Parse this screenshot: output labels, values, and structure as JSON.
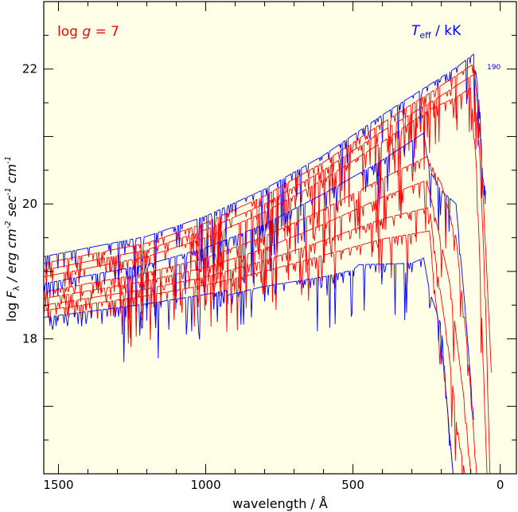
{
  "chart_data": {
    "type": "line",
    "xlabel": "wavelength / Å",
    "ylabel_parts": {
      "pre": "log ",
      "F": "F",
      "lambda": "λ",
      "units": " / erg cm",
      "exp1": "-2",
      "sec": " sec",
      "exp2": "-1",
      "cm": " cm",
      "exp3": "-1"
    },
    "x_range": [
      1550,
      -55
    ],
    "y_range": [
      16.0,
      23.0
    ],
    "x_ticks": [
      1500,
      1000,
      500,
      0
    ],
    "x_tick_labels": [
      "1500",
      "1000",
      "500",
      "0"
    ],
    "y_ticks": [
      18,
      20,
      22
    ],
    "y_tick_labels": [
      "18",
      "20",
      "22"
    ],
    "background": "#ffffe8",
    "colors": {
      "hot": "#0000ff",
      "model": "#ff0000"
    },
    "annotations": {
      "logg": {
        "prefix": "log ",
        "g": "g",
        "suffix": " = 7",
        "color": "#ff0000"
      },
      "teff": {
        "T": "T",
        "sub": "eff",
        "suffix": " / kK",
        "color": "#0000ff"
      },
      "label_190": "190"
    },
    "series": [
      {
        "color": "blue",
        "values": [
          [
            1550,
            19.22
          ],
          [
            1200,
            19.52
          ],
          [
            1000,
            19.82
          ],
          [
            800,
            20.22
          ],
          [
            600,
            20.72
          ],
          [
            400,
            21.32
          ],
          [
            200,
            21.88
          ],
          [
            150,
            22.02
          ],
          [
            90,
            22.22
          ],
          [
            70,
            21.5
          ],
          [
            60,
            20.4
          ],
          [
            50,
            20.2
          ]
        ]
      },
      {
        "color": "red",
        "values": [
          [
            1550,
            19.12
          ],
          [
            1200,
            19.42
          ],
          [
            1000,
            19.72
          ],
          [
            800,
            20.12
          ],
          [
            600,
            20.62
          ],
          [
            400,
            21.2
          ],
          [
            220,
            21.7
          ],
          [
            150,
            21.9
          ],
          [
            90,
            22.08
          ],
          [
            70,
            21.2
          ],
          [
            50,
            19.4
          ],
          [
            30,
            17.5
          ]
        ]
      },
      {
        "color": "red",
        "values": [
          [
            1550,
            19.02
          ],
          [
            1200,
            19.32
          ],
          [
            1000,
            19.62
          ],
          [
            800,
            20.0
          ],
          [
            600,
            20.5
          ],
          [
            400,
            21.08
          ],
          [
            220,
            21.55
          ],
          [
            150,
            21.75
          ],
          [
            90,
            21.92
          ],
          [
            70,
            20.8
          ],
          [
            50,
            18.6
          ],
          [
            35,
            16.0
          ]
        ]
      },
      {
        "color": "red",
        "values": [
          [
            1550,
            18.92
          ],
          [
            1200,
            19.22
          ],
          [
            1000,
            19.5
          ],
          [
            800,
            19.88
          ],
          [
            600,
            20.36
          ],
          [
            400,
            20.92
          ],
          [
            240,
            21.4
          ],
          [
            150,
            21.58
          ],
          [
            100,
            21.72
          ],
          [
            80,
            20.5
          ],
          [
            60,
            18.0
          ],
          [
            45,
            16.0
          ]
        ]
      },
      {
        "color": "blue",
        "values": [
          [
            1550,
            18.82
          ],
          [
            1200,
            19.1
          ],
          [
            1000,
            19.35
          ],
          [
            800,
            19.7
          ],
          [
            600,
            20.15
          ],
          [
            400,
            20.65
          ],
          [
            260,
            21.05
          ],
          [
            240,
            20.5
          ],
          [
            200,
            20.2
          ],
          [
            150,
            20.0
          ],
          [
            120,
            18.5
          ],
          [
            90,
            16.8
          ]
        ]
      },
      {
        "color": "red",
        "values": [
          [
            1550,
            18.7
          ],
          [
            1200,
            18.98
          ],
          [
            1000,
            19.2
          ],
          [
            800,
            19.52
          ],
          [
            600,
            19.92
          ],
          [
            400,
            20.38
          ],
          [
            250,
            20.7
          ],
          [
            200,
            20.3
          ],
          [
            150,
            19.5
          ],
          [
            110,
            17.8
          ],
          [
            80,
            16.0
          ]
        ]
      },
      {
        "color": "red",
        "values": [
          [
            1550,
            18.6
          ],
          [
            1200,
            18.86
          ],
          [
            1000,
            19.06
          ],
          [
            800,
            19.34
          ],
          [
            600,
            19.7
          ],
          [
            400,
            20.1
          ],
          [
            250,
            20.35
          ],
          [
            220,
            19.8
          ],
          [
            170,
            18.8
          ],
          [
            120,
            17.0
          ],
          [
            100,
            16.0
          ]
        ]
      },
      {
        "color": "red",
        "values": [
          [
            1550,
            18.5
          ],
          [
            1200,
            18.74
          ],
          [
            1000,
            18.92
          ],
          [
            800,
            19.16
          ],
          [
            600,
            19.46
          ],
          [
            400,
            19.78
          ],
          [
            240,
            19.95
          ],
          [
            220,
            19.2
          ],
          [
            180,
            18.0
          ],
          [
            140,
            16.5
          ],
          [
            120,
            16.0
          ]
        ]
      },
      {
        "color": "red",
        "values": [
          [
            1550,
            18.42
          ],
          [
            1200,
            18.64
          ],
          [
            1000,
            18.8
          ],
          [
            800,
            19.0
          ],
          [
            600,
            19.24
          ],
          [
            400,
            19.48
          ],
          [
            240,
            19.6
          ],
          [
            220,
            18.6
          ],
          [
            190,
            17.5
          ],
          [
            160,
            16.0
          ]
        ]
      },
      {
        "color": "blue",
        "values": [
          [
            1550,
            18.32
          ],
          [
            1200,
            18.52
          ],
          [
            1000,
            18.66
          ],
          [
            930,
            18.72
          ],
          [
            925,
            18.65
          ],
          [
            800,
            18.78
          ],
          [
            600,
            18.92
          ],
          [
            500,
            19.02
          ],
          [
            480,
            19.1
          ],
          [
            300,
            19.12
          ],
          [
            260,
            19.2
          ],
          [
            240,
            18.7
          ],
          [
            200,
            18.2
          ],
          [
            180,
            17.0
          ],
          [
            160,
            16.0
          ]
        ]
      }
    ]
  }
}
